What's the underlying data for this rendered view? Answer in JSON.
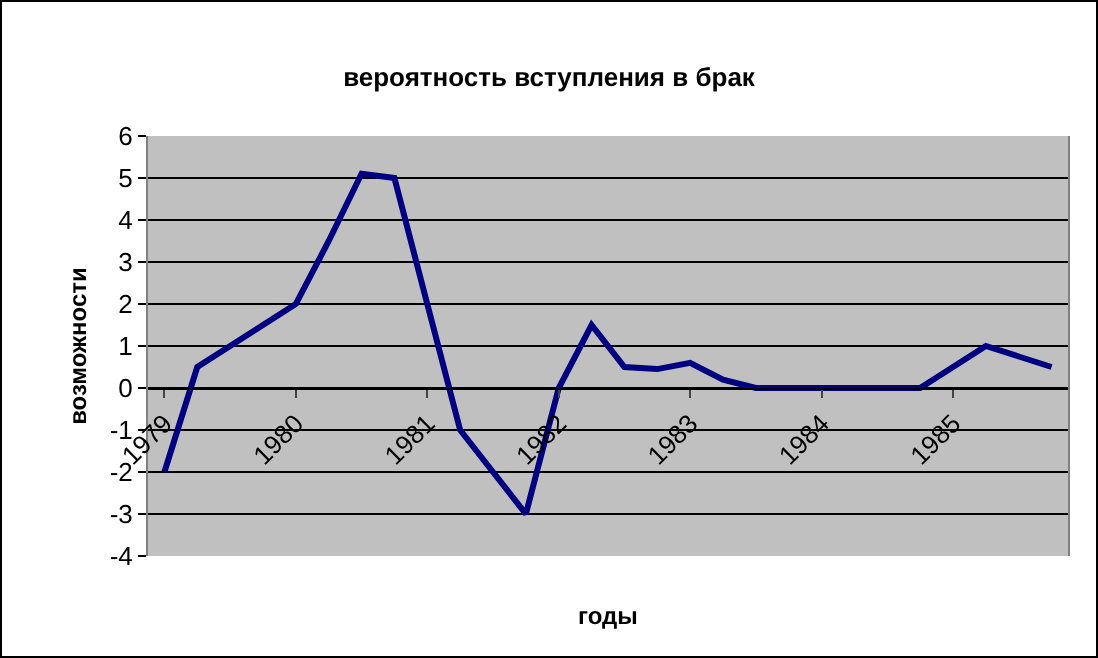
{
  "chart_data": {
    "type": "line",
    "title": "вероятность вступления в брак",
    "xlabel": "годы",
    "ylabel": "возможности",
    "categories": [
      "1979",
      null,
      null,
      null,
      "1980",
      null,
      null,
      null,
      "1981",
      null,
      null,
      null,
      "1982",
      null,
      null,
      null,
      "1983",
      null,
      null,
      null,
      "1984",
      null,
      null,
      null,
      "1985",
      null,
      null,
      null
    ],
    "series": [
      {
        "color": "#000080",
        "values": [
          -2,
          0.5,
          1,
          1.5,
          2,
          3.5,
          5.1,
          5,
          2,
          -1,
          -2,
          -3,
          0,
          1.5,
          0.5,
          0.45,
          0.6,
          0.2,
          0,
          0,
          0,
          0,
          0,
          0,
          0.5,
          1,
          0.75,
          0.5
        ]
      }
    ],
    "ylim": [
      -4,
      6
    ],
    "yticks": [
      -4,
      -3,
      -2,
      -1,
      0,
      1,
      2,
      3,
      4,
      5,
      6
    ],
    "grid": "y",
    "marker": "none",
    "line_style": "solid"
  }
}
